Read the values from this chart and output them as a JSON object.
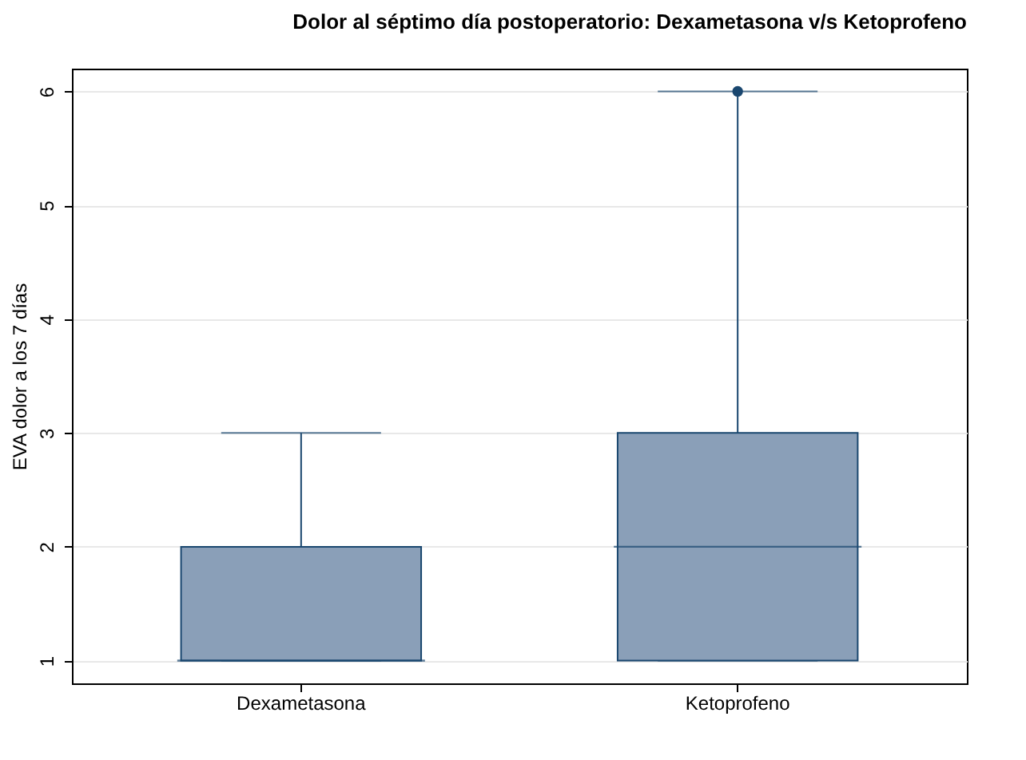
{
  "chart_data": {
    "type": "box",
    "title": "Dolor al séptimo día postoperatorio: Dexametasona v/s Ketoprofeno",
    "ylabel": "EVA dolor a los 7 días",
    "categories": [
      "Dexametasona",
      "Ketoprofeno"
    ],
    "boxes": [
      {
        "low": 1,
        "q1": 1,
        "median": 1,
        "q3": 2,
        "high": 3
      },
      {
        "low": 1,
        "q1": 1,
        "median": 2,
        "q3": 3,
        "high": 6,
        "outliers": [
          6
        ]
      }
    ],
    "color": "#8a9fb8",
    "ylim": [
      0.8,
      6.2
    ],
    "yticks": [
      1,
      2,
      3,
      4,
      5,
      6
    ],
    "grid": "y"
  }
}
